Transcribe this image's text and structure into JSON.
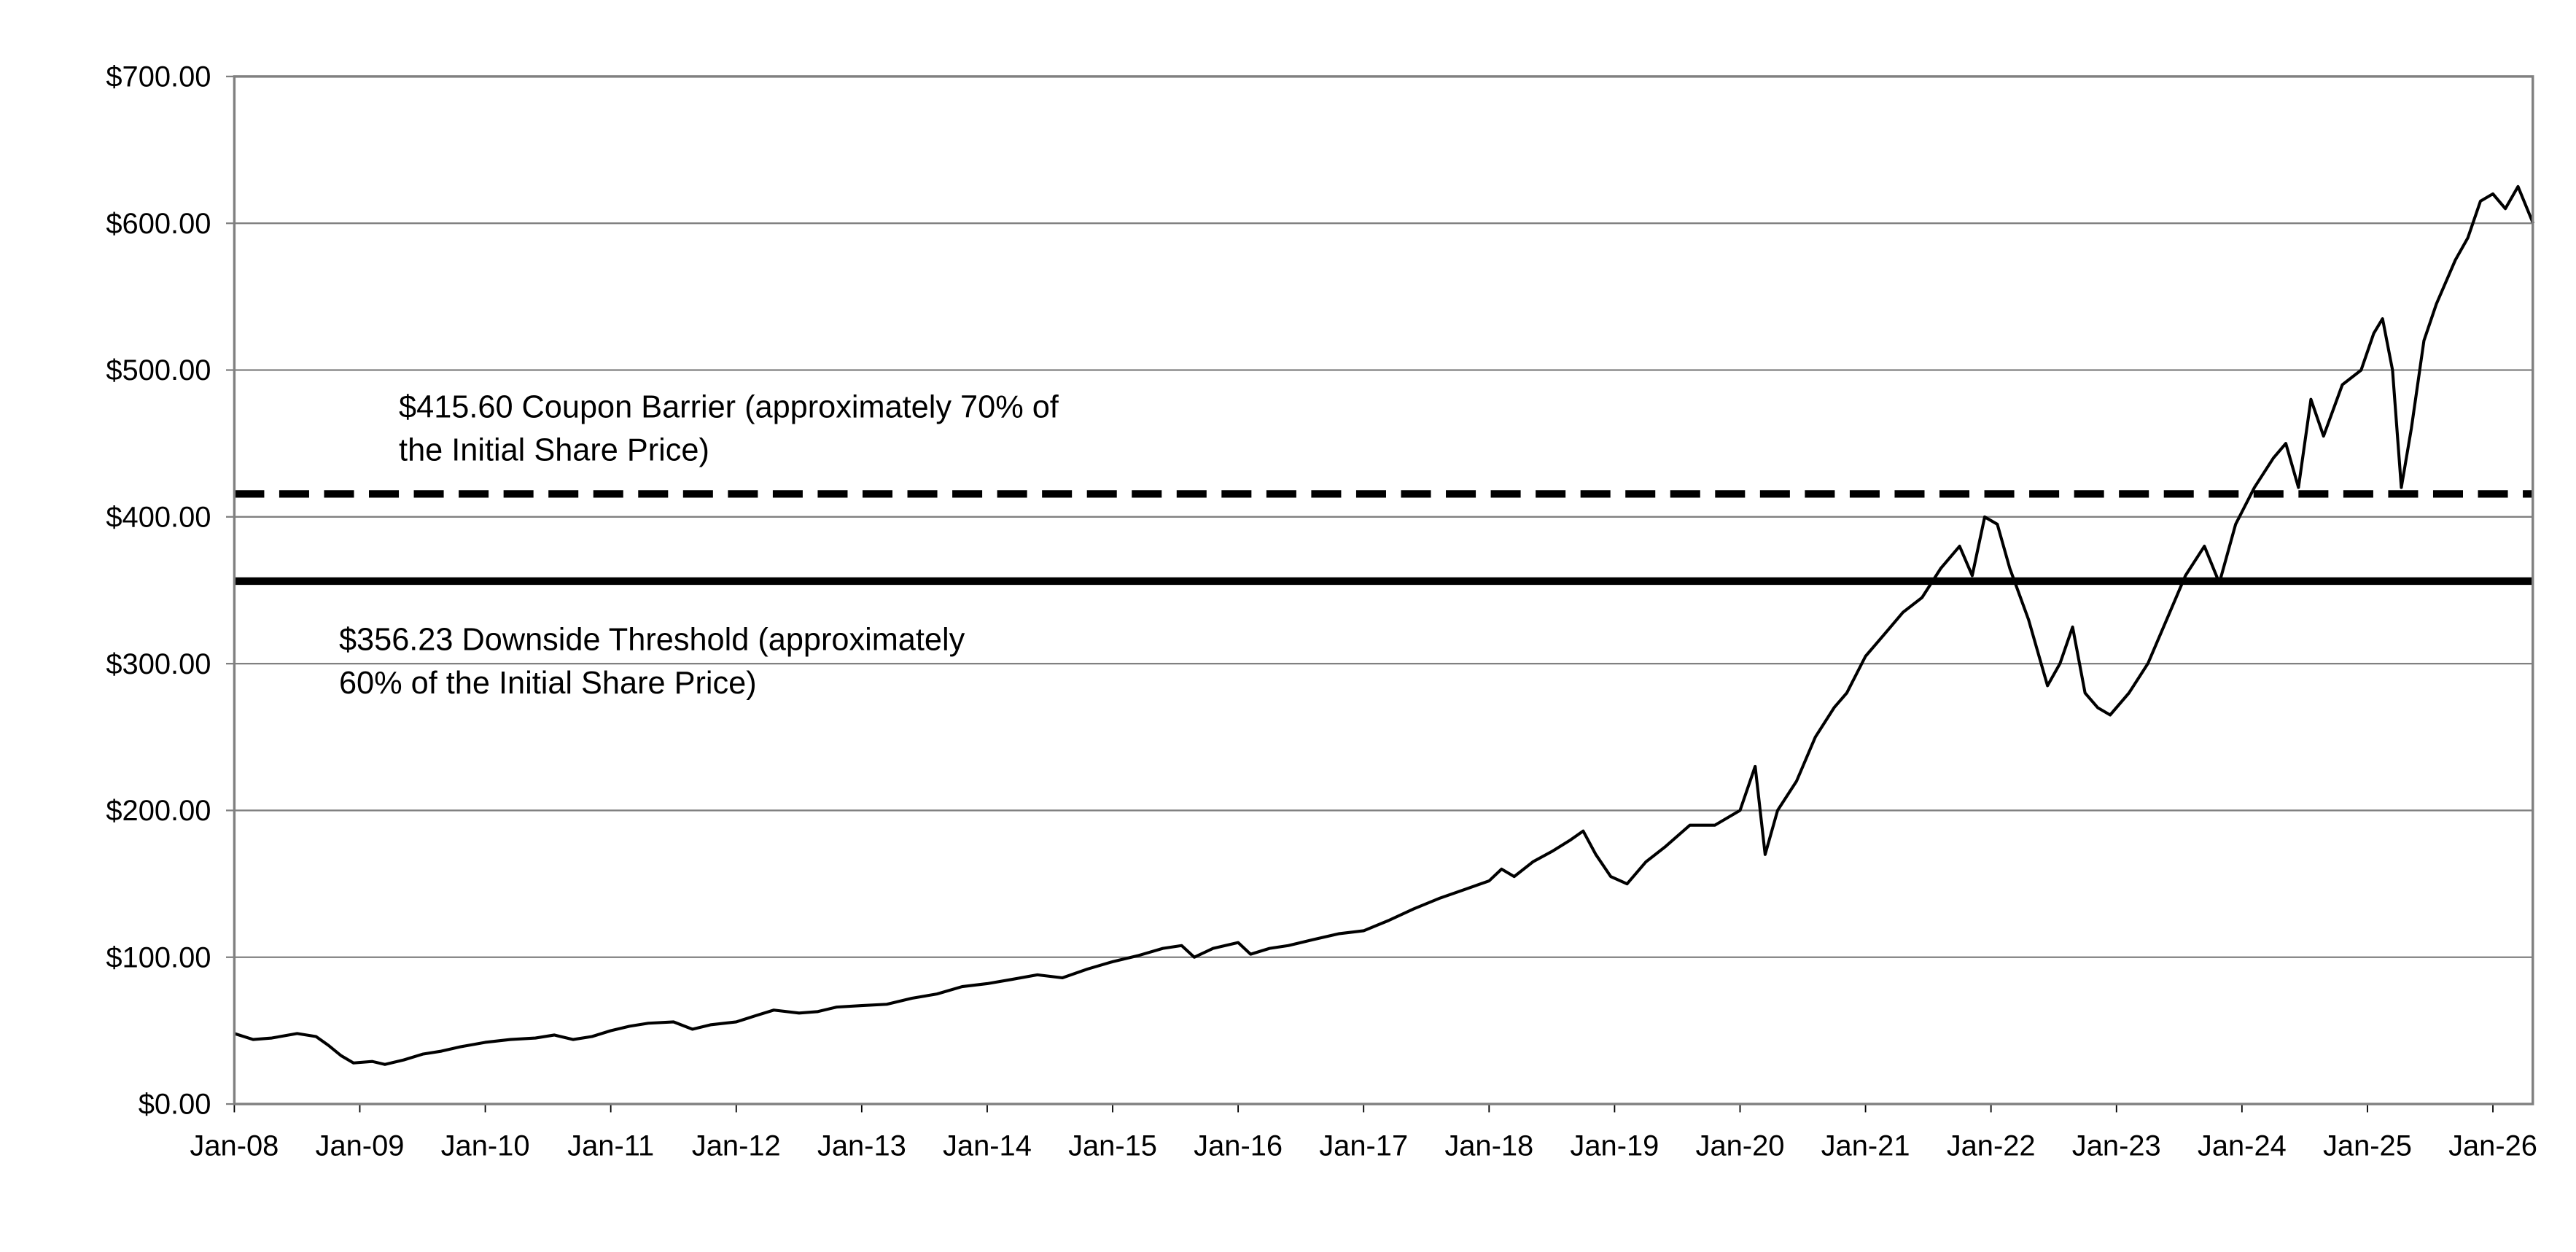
{
  "chart_data": {
    "type": "line",
    "title": "",
    "xlabel": "",
    "ylabel": "",
    "ylim": [
      0,
      700
    ],
    "xlim": [
      2008.0,
      2026.32
    ],
    "grid": true,
    "y_ticks": [
      0,
      100,
      200,
      300,
      400,
      500,
      600,
      700
    ],
    "y_tick_labels": [
      "$0.00",
      "$100.00",
      "$200.00",
      "$300.00",
      "$400.00",
      "$500.00",
      "$600.00",
      "$700.00"
    ],
    "x_ticks": [
      2008,
      2009,
      2010,
      2011,
      2012,
      2013,
      2014,
      2015,
      2016,
      2017,
      2018,
      2019,
      2020,
      2021,
      2022,
      2023,
      2024,
      2025,
      2026
    ],
    "x_tick_labels": [
      "Jan-08",
      "Jan-09",
      "Jan-10",
      "Jan-11",
      "Jan-12",
      "Jan-13",
      "Jan-14",
      "Jan-15",
      "Jan-16",
      "Jan-17",
      "Jan-18",
      "Jan-19",
      "Jan-20",
      "Jan-21",
      "Jan-22",
      "Jan-23",
      "Jan-24",
      "Jan-25",
      "Jan-26"
    ],
    "series": [
      {
        "name": "Share Price",
        "color": "#000000",
        "x": [
          2008.0,
          2008.15,
          2008.3,
          2008.5,
          2008.65,
          2008.75,
          2008.85,
          2008.95,
          2009.1,
          2009.2,
          2009.35,
          2009.5,
          2009.65,
          2009.8,
          2010.0,
          2010.2,
          2010.4,
          2010.55,
          2010.7,
          2010.85,
          2011.0,
          2011.15,
          2011.3,
          2011.5,
          2011.65,
          2011.8,
          2012.0,
          2012.15,
          2012.3,
          2012.5,
          2012.65,
          2012.8,
          2013.0,
          2013.2,
          2013.4,
          2013.6,
          2013.8,
          2014.0,
          2014.2,
          2014.4,
          2014.6,
          2014.8,
          2015.0,
          2015.2,
          2015.4,
          2015.55,
          2015.65,
          2015.8,
          2016.0,
          2016.1,
          2016.25,
          2016.4,
          2016.6,
          2016.8,
          2017.0,
          2017.2,
          2017.4,
          2017.6,
          2017.8,
          2018.0,
          2018.1,
          2018.2,
          2018.35,
          2018.5,
          2018.65,
          2018.75,
          2018.85,
          2018.97,
          2019.1,
          2019.25,
          2019.4,
          2019.6,
          2019.8,
          2020.0,
          2020.12,
          2020.2,
          2020.3,
          2020.45,
          2020.6,
          2020.75,
          2020.85,
          2021.0,
          2021.15,
          2021.3,
          2021.45,
          2021.6,
          2021.75,
          2021.85,
          2021.95,
          2022.05,
          2022.15,
          2022.3,
          2022.45,
          2022.55,
          2022.65,
          2022.75,
          2022.85,
          2022.95,
          2023.1,
          2023.25,
          2023.4,
          2023.55,
          2023.7,
          2023.82,
          2023.95,
          2024.1,
          2024.25,
          2024.35,
          2024.45,
          2024.55,
          2024.65,
          2024.8,
          2024.95,
          2025.05,
          2025.12,
          2025.2,
          2025.27,
          2025.35,
          2025.45,
          2025.55,
          2025.7,
          2025.8,
          2025.9,
          2026.0,
          2026.1,
          2026.2,
          2026.32
        ],
        "y": [
          48,
          44,
          45,
          48,
          46,
          40,
          33,
          28,
          29,
          27,
          30,
          34,
          36,
          39,
          42,
          44,
          45,
          47,
          44,
          46,
          50,
          53,
          55,
          56,
          51,
          54,
          56,
          60,
          64,
          62,
          63,
          66,
          67,
          68,
          72,
          75,
          80,
          82,
          85,
          88,
          86,
          92,
          97,
          101,
          106,
          108,
          100,
          106,
          110,
          102,
          106,
          108,
          112,
          116,
          118,
          125,
          133,
          140,
          146,
          152,
          160,
          155,
          165,
          172,
          180,
          186,
          170,
          155,
          150,
          165,
          175,
          190,
          190,
          200,
          230,
          170,
          200,
          220,
          250,
          270,
          280,
          305,
          320,
          335,
          345,
          365,
          380,
          360,
          400,
          395,
          365,
          330,
          285,
          300,
          325,
          280,
          270,
          265,
          280,
          300,
          330,
          360,
          380,
          355,
          395,
          420,
          440,
          450,
          420,
          480,
          455,
          490,
          500,
          525,
          535,
          500,
          420,
          460,
          520,
          545,
          575,
          590,
          615,
          620,
          610,
          625,
          600
        ]
      }
    ],
    "reference_lines": [
      {
        "name": "Coupon Barrier",
        "value": 415.6,
        "style": "dashed",
        "label_lines": [
          "$415.60 Coupon Barrier (approximately 70% of",
          "the Initial Share Price)"
        ]
      },
      {
        "name": "Downside Threshold",
        "value": 356.23,
        "style": "solid",
        "label_lines": [
          "$356.23 Downside Threshold (approximately",
          "60% of the Initial Share Price)"
        ]
      }
    ]
  }
}
